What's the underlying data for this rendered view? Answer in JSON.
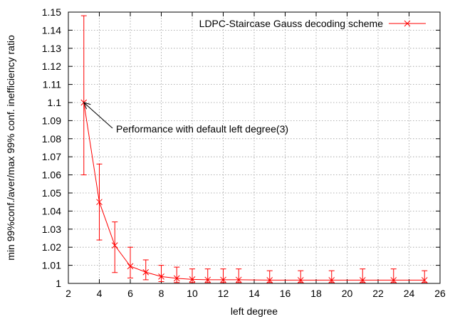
{
  "chart_data": {
    "type": "line",
    "title": "",
    "xlabel": "left degree",
    "ylabel": "min 99%conf./aver/max 99% conf. inefficiency ratio",
    "xlim": [
      2,
      26
    ],
    "ylim": [
      1,
      1.15
    ],
    "xticks": [
      2,
      4,
      6,
      8,
      10,
      12,
      14,
      16,
      18,
      20,
      22,
      24,
      26
    ],
    "xtick_labels": [
      "2",
      "4",
      "6",
      "8",
      "10",
      "12",
      "14",
      "16",
      "18",
      "20",
      "22",
      "24",
      "26"
    ],
    "yticks": [
      1,
      1.01,
      1.02,
      1.03,
      1.04,
      1.05,
      1.06,
      1.07,
      1.08,
      1.09,
      1.1,
      1.11,
      1.12,
      1.13,
      1.14,
      1.15
    ],
    "ytick_labels": [
      "1",
      "1.01",
      "1.02",
      "1.03",
      "1.04",
      "1.05",
      "1.06",
      "1.07",
      "1.08",
      "1.09",
      "1.1",
      "1.11",
      "1.12",
      "1.13",
      "1.14",
      "1.15"
    ],
    "grid": true,
    "legend_position": "top-right",
    "series": [
      {
        "name": "LDPC-Staircase Gauss decoding scheme",
        "color": "#ff0000",
        "marker": "x-cross",
        "points": [
          {
            "x": 3,
            "y": 1.1,
            "ymin": 1.06,
            "ymax": 1.148
          },
          {
            "x": 4,
            "y": 1.045,
            "ymin": 1.024,
            "ymax": 1.066
          },
          {
            "x": 5,
            "y": 1.021,
            "ymin": 1.006,
            "ymax": 1.034
          },
          {
            "x": 6,
            "y": 1.0095,
            "ymin": 1.003,
            "ymax": 1.02
          },
          {
            "x": 7,
            "y": 1.0062,
            "ymin": 1.002,
            "ymax": 1.013
          },
          {
            "x": 8,
            "y": 1.0038,
            "ymin": 1.001,
            "ymax": 1.01
          },
          {
            "x": 9,
            "y": 1.0028,
            "ymin": 1.0005,
            "ymax": 1.009
          },
          {
            "x": 10,
            "y": 1.0022,
            "ymin": 1.0005,
            "ymax": 1.008
          },
          {
            "x": 11,
            "y": 1.002,
            "ymin": 1.0005,
            "ymax": 1.008
          },
          {
            "x": 12,
            "y": 1.002,
            "ymin": 1.0005,
            "ymax": 1.008
          },
          {
            "x": 13,
            "y": 1.002,
            "ymin": 1.0005,
            "ymax": 1.008
          },
          {
            "x": 15,
            "y": 1.0018,
            "ymin": 1.0005,
            "ymax": 1.007
          },
          {
            "x": 17,
            "y": 1.0018,
            "ymin": 1.0005,
            "ymax": 1.007
          },
          {
            "x": 19,
            "y": 1.0018,
            "ymin": 1.0005,
            "ymax": 1.007
          },
          {
            "x": 21,
            "y": 1.0018,
            "ymin": 1.0005,
            "ymax": 1.008
          },
          {
            "x": 23,
            "y": 1.0018,
            "ymin": 1.0005,
            "ymax": 1.008
          },
          {
            "x": 25,
            "y": 1.0018,
            "ymin": 1.0005,
            "ymax": 1.007
          }
        ]
      }
    ],
    "annotations": [
      {
        "text": "Performance with default left degree(3)",
        "arrow_to": {
          "x": 3,
          "y": 1.1
        }
      }
    ]
  }
}
